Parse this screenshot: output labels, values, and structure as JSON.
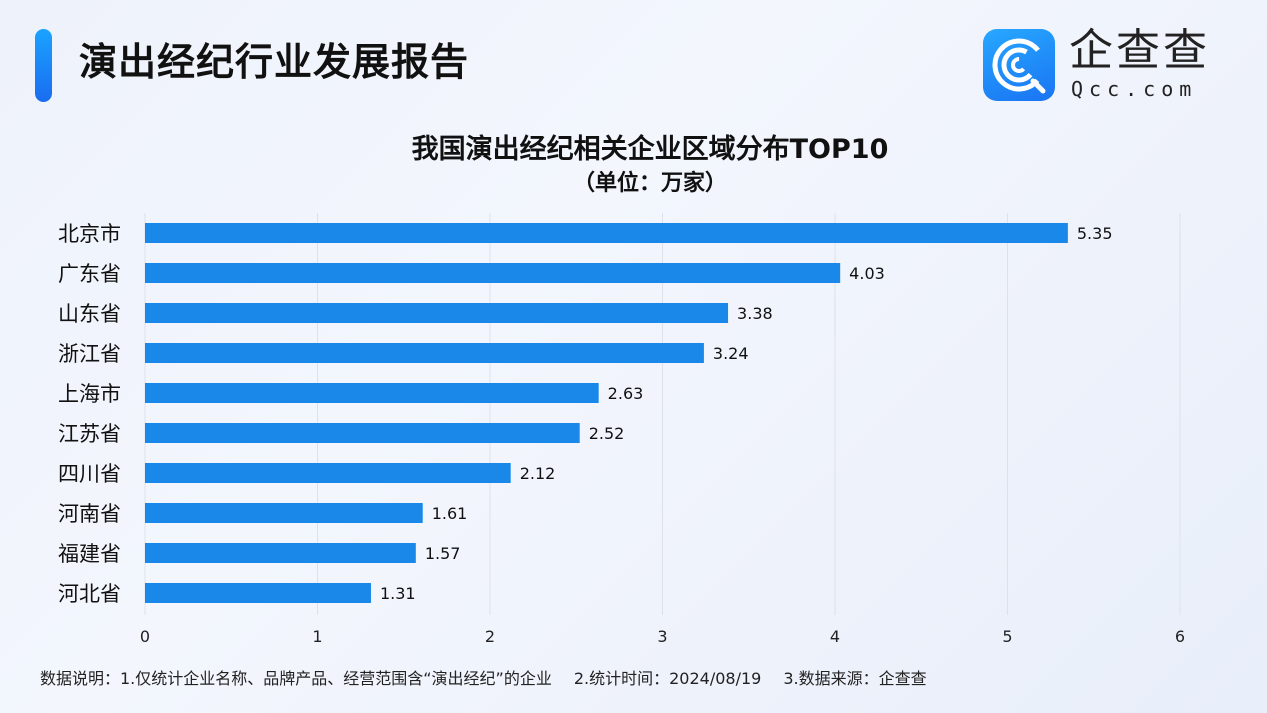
{
  "header": {
    "title": "演出经纪行业发展报告",
    "logo": {
      "cn": "企查查",
      "en": "Qcc.com",
      "icon": "qcc-logo-icon"
    }
  },
  "colors": {
    "bar": "#1a88e8",
    "accent": "#1a7ff0",
    "grid": "#dde2ea"
  },
  "chart_data": {
    "type": "bar",
    "orientation": "horizontal",
    "title": "我国演出经纪相关企业区域分布TOP10",
    "subtitle": "（单位：万家）",
    "categories": [
      "北京市",
      "广东省",
      "山东省",
      "浙江省",
      "上海市",
      "江苏省",
      "四川省",
      "河南省",
      "福建省",
      "河北省"
    ],
    "values": [
      5.35,
      4.03,
      3.38,
      3.24,
      2.63,
      2.52,
      2.12,
      1.61,
      1.57,
      1.31
    ],
    "value_labels": [
      "5.35",
      "4.03",
      "3.38",
      "3.24",
      "2.63",
      "2.52",
      "2.12",
      "1.61",
      "1.57",
      "1.31"
    ],
    "xlim": [
      0,
      6
    ],
    "xticks": [
      "0",
      "1",
      "2",
      "3",
      "4",
      "5",
      "6"
    ],
    "xlabel": "",
    "ylabel": "",
    "grid": true,
    "legend": "none"
  },
  "footer": {
    "note1": "数据说明：1.仅统计企业名称、品牌产品、经营范围含“演出经纪”的企业",
    "note2": "2.统计时间：2024/08/19",
    "note3": "3.数据来源：企查查"
  }
}
